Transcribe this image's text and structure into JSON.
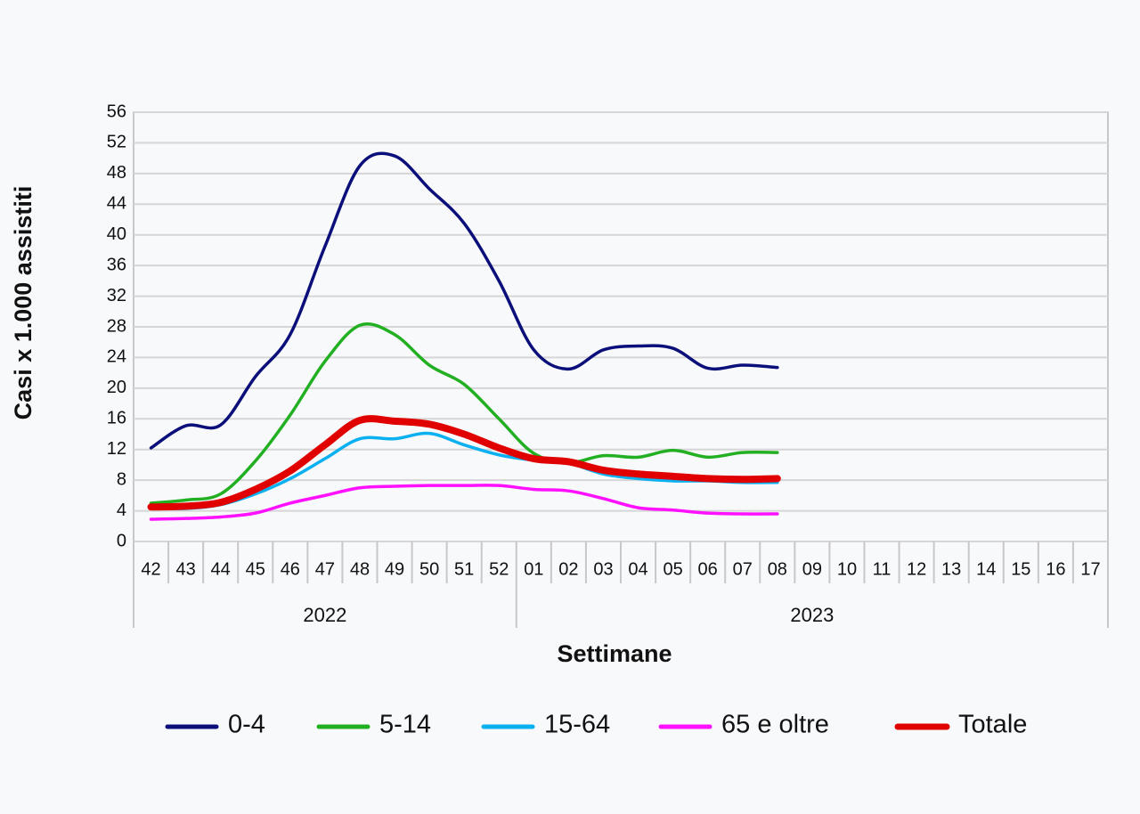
{
  "chart_data": {
    "type": "line",
    "xlabel": "Settimane",
    "ylabel": "Casi x 1.000 assistiti",
    "categories": [
      "42",
      "43",
      "44",
      "45",
      "46",
      "47",
      "48",
      "49",
      "50",
      "51",
      "52",
      "01",
      "02",
      "03",
      "04",
      "05",
      "06",
      "07",
      "08",
      "09",
      "10",
      "11",
      "12",
      "13",
      "14",
      "15",
      "16",
      "17"
    ],
    "x_groups": [
      "2022",
      "2023"
    ],
    "ylim": [
      0,
      56
    ],
    "yticks": [
      0,
      4,
      8,
      12,
      16,
      20,
      24,
      28,
      32,
      36,
      40,
      44,
      48,
      52,
      56
    ],
    "grid": true,
    "legend": "bottom",
    "series": [
      {
        "name": "0-4",
        "color": "#0b0f7a",
        "values": [
          12.2,
          15.1,
          15.2,
          21.5,
          27,
          38.5,
          49,
          50.3,
          46,
          41.5,
          34,
          25,
          22.5,
          25,
          25.5,
          25.2,
          22.6,
          23,
          22.7,
          null,
          null,
          null,
          null,
          null,
          null,
          null,
          null,
          null
        ]
      },
      {
        "name": "5-14",
        "color": "#22b022",
        "values": [
          5,
          5.4,
          6.2,
          10.5,
          16.5,
          23.5,
          28.2,
          27,
          23,
          20.5,
          16,
          11.5,
          10.3,
          11.2,
          11,
          11.9,
          11,
          11.6,
          11.6,
          null,
          null,
          null,
          null,
          null,
          null,
          null,
          null,
          null
        ]
      },
      {
        "name": "15-64",
        "color": "#0ab0f0",
        "values": [
          4.4,
          4.3,
          4.8,
          6.2,
          8.2,
          10.8,
          13.4,
          13.4,
          14.1,
          12.6,
          11.3,
          10.6,
          10.2,
          8.8,
          8.2,
          7.9,
          7.9,
          7.7,
          7.7,
          null,
          null,
          null,
          null,
          null,
          null,
          null,
          null,
          null
        ]
      },
      {
        "name": "65 e oltre",
        "color": "#ff10ff",
        "values": [
          2.9,
          3,
          3.2,
          3.7,
          5,
          6,
          7,
          7.2,
          7.3,
          7.3,
          7.3,
          6.8,
          6.6,
          5.6,
          4.4,
          4.1,
          3.7,
          3.6,
          3.6,
          null,
          null,
          null,
          null,
          null,
          null,
          null,
          null,
          null
        ]
      },
      {
        "name": "Totale",
        "color": "#e00000",
        "values": [
          4.5,
          4.6,
          5.1,
          6.8,
          9.2,
          12.6,
          15.8,
          15.7,
          15.3,
          14,
          12.2,
          10.8,
          10.4,
          9.3,
          8.8,
          8.5,
          8.2,
          8.1,
          8.2,
          null,
          null,
          null,
          null,
          null,
          null,
          null,
          null,
          null
        ]
      }
    ]
  }
}
